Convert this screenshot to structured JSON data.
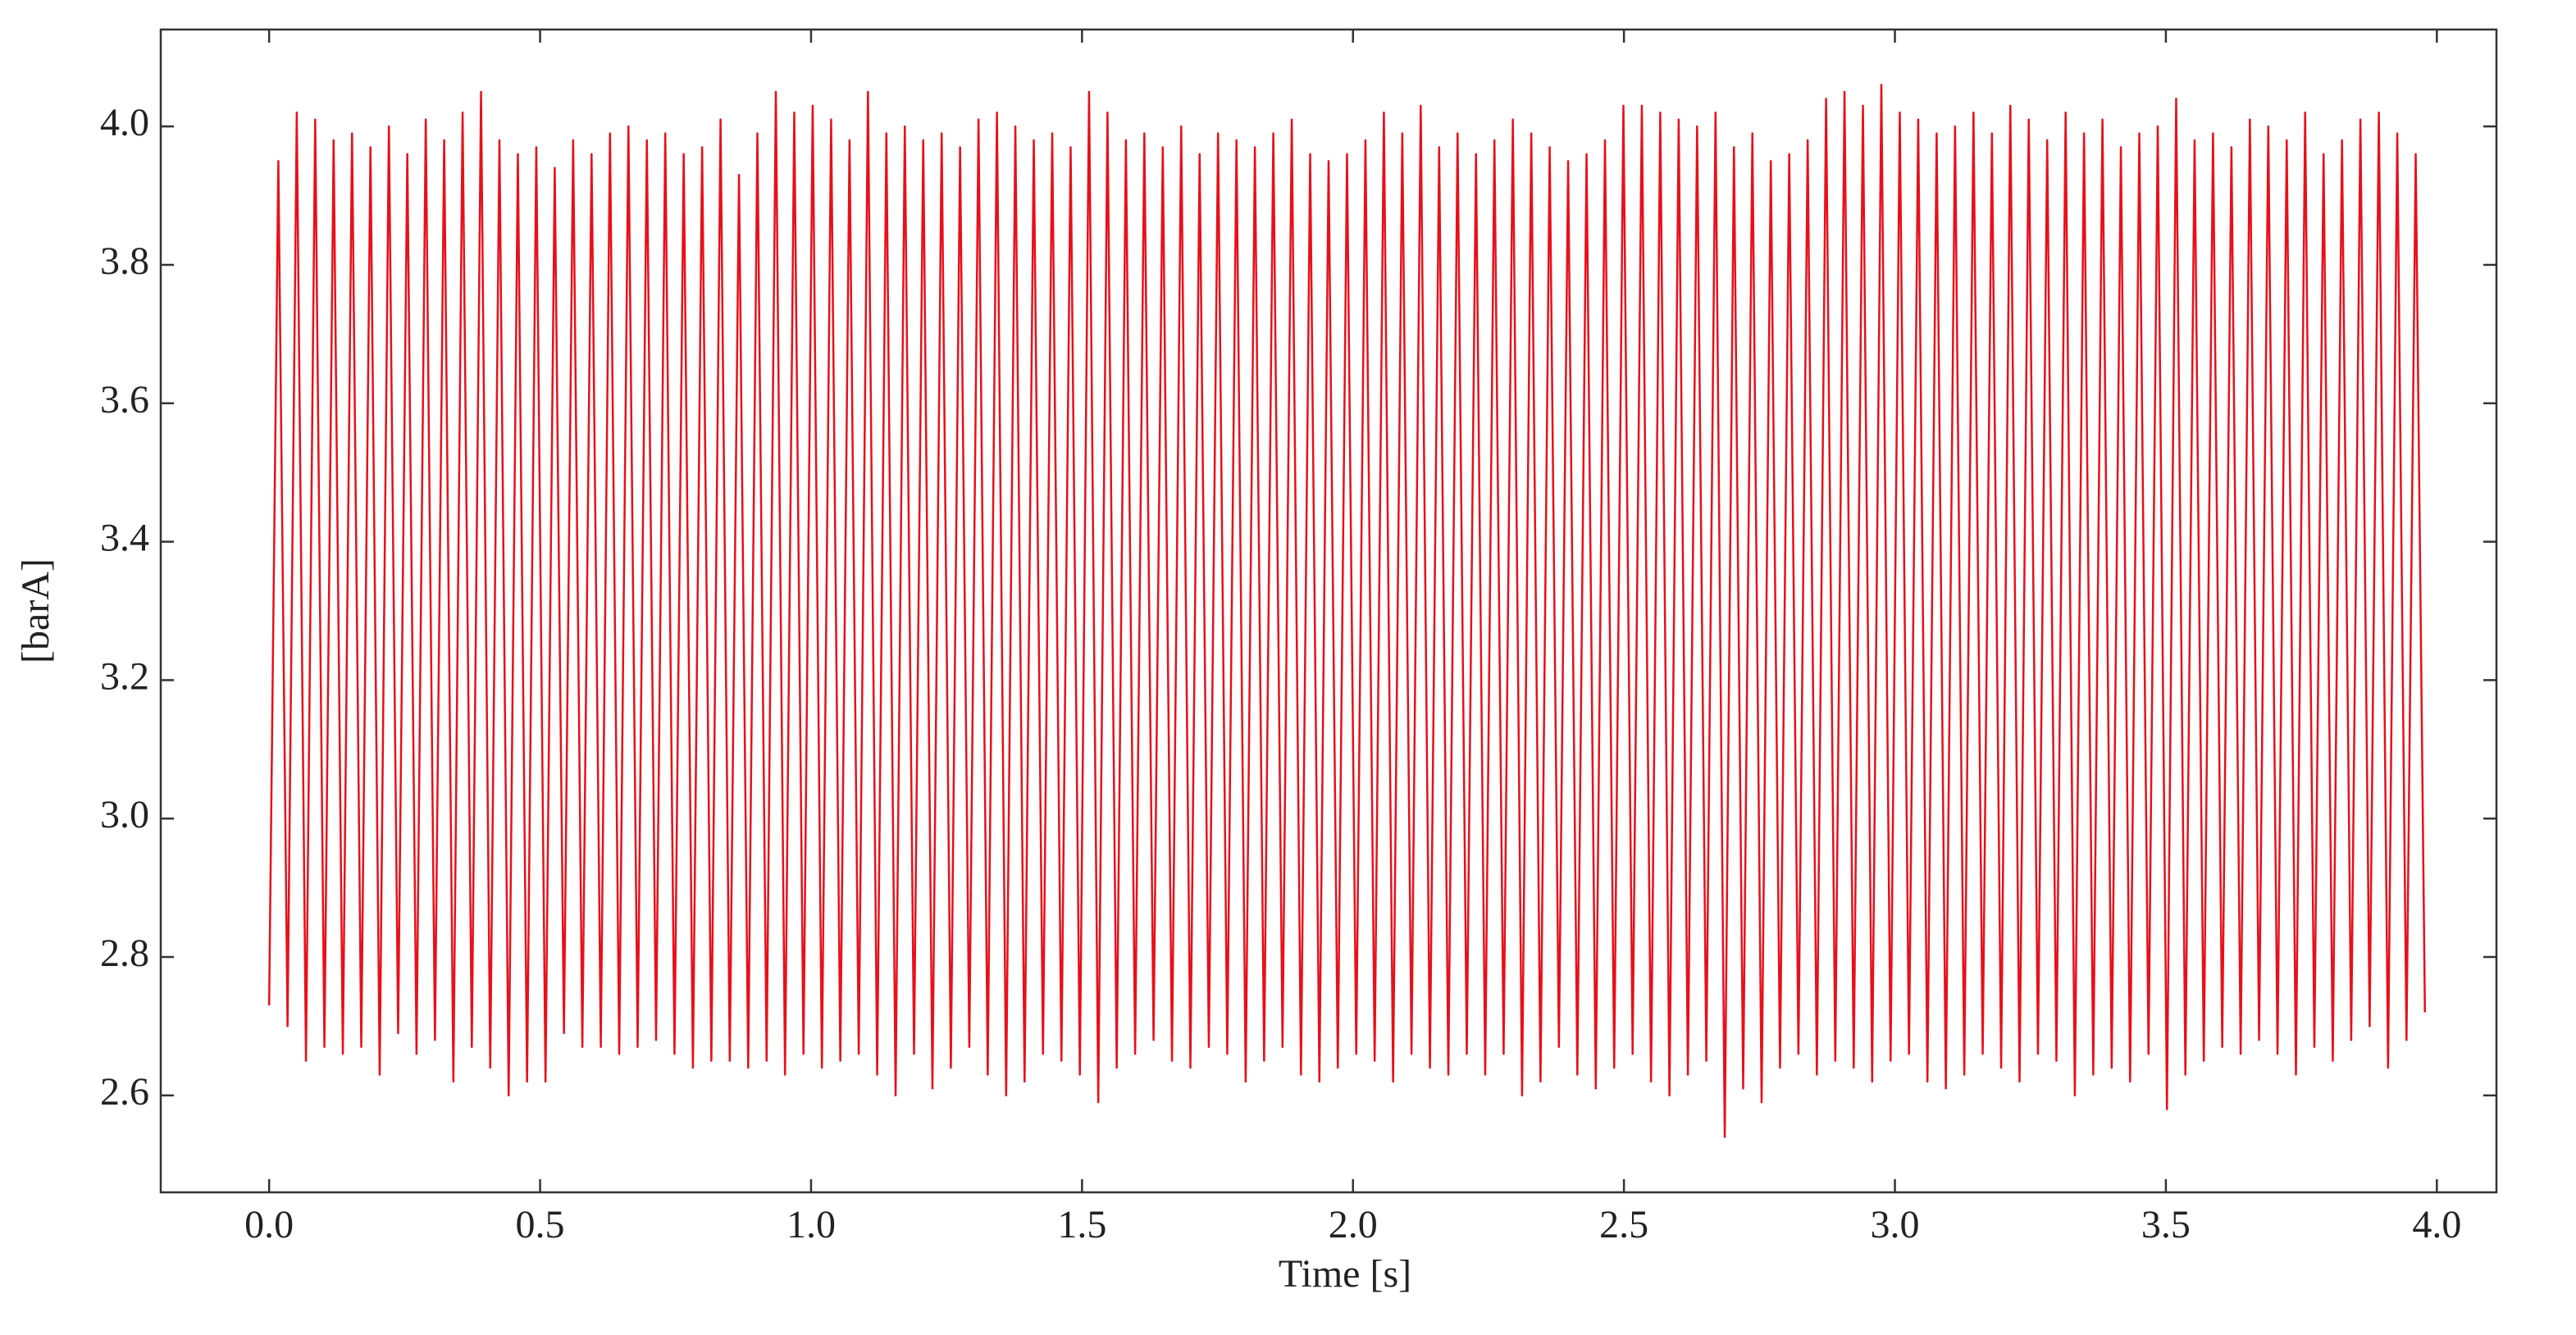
{
  "chart_data": {
    "type": "line",
    "x_label": "Time [s]",
    "y_label": "[barA]",
    "color": "#e8101a",
    "xlim": [
      -0.2,
      4.11
    ],
    "ylim": [
      2.46,
      4.14
    ],
    "xticks": [
      {
        "value": 0,
        "label": "0.0"
      },
      0.5,
      {
        "value": 1,
        "label": "1.0"
      },
      1.5,
      {
        "value": 2,
        "label": "2.0"
      },
      2.5,
      {
        "value": 3,
        "label": "3.0"
      },
      3.5,
      {
        "value": 4,
        "label": "4.0"
      }
    ],
    "yticks": [
      2.6,
      2.8,
      {
        "value": 3,
        "label": "3.0"
      },
      3.2,
      3.4,
      3.6,
      3.8,
      {
        "value": 4,
        "label": "4.0"
      }
    ],
    "x": [
      0,
      0.017,
      0.034,
      0.051,
      0.068,
      0.085,
      0.102,
      0.119,
      0.136,
      0.153,
      0.17,
      0.187,
      0.204,
      0.221,
      0.238,
      0.255,
      0.272,
      0.289,
      0.306,
      0.323,
      0.34,
      0.357,
      0.374,
      0.391,
      0.408,
      0.425,
      0.442,
      0.459,
      0.476,
      0.493,
      0.51,
      0.527,
      0.544,
      0.561,
      0.578,
      0.595,
      0.612,
      0.629,
      0.646,
      0.663,
      0.68,
      0.697,
      0.714,
      0.731,
      0.748,
      0.765,
      0.782,
      0.799,
      0.816,
      0.833,
      0.85,
      0.867,
      0.884,
      0.901,
      0.918,
      0.935,
      0.952,
      0.969,
      0.986,
      1.003,
      1.02,
      1.037,
      1.054,
      1.071,
      1.088,
      1.105,
      1.122,
      1.139,
      1.156,
      1.173,
      1.19,
      1.207,
      1.224,
      1.241,
      1.258,
      1.275,
      1.292,
      1.309,
      1.326,
      1.343,
      1.36,
      1.377,
      1.394,
      1.411,
      1.428,
      1.445,
      1.462,
      1.479,
      1.496,
      1.513,
      1.53,
      1.547,
      1.564,
      1.581,
      1.598,
      1.615,
      1.632,
      1.649,
      1.666,
      1.683,
      1.7,
      1.717,
      1.734,
      1.751,
      1.768,
      1.785,
      1.802,
      1.819,
      1.836,
      1.853,
      1.87,
      1.887,
      1.904,
      1.921,
      1.938,
      1.955,
      1.972,
      1.989,
      2.006,
      2.023,
      2.04,
      2.057,
      2.074,
      2.091,
      2.108,
      2.125,
      2.142,
      2.159,
      2.176,
      2.193,
      2.21,
      2.227,
      2.244,
      2.261,
      2.278,
      2.295,
      2.312,
      2.329,
      2.346,
      2.363,
      2.38,
      2.397,
      2.414,
      2.431,
      2.448,
      2.465,
      2.482,
      2.499,
      2.516,
      2.533,
      2.55,
      2.567,
      2.584,
      2.601,
      2.618,
      2.635,
      2.652,
      2.669,
      2.686,
      2.703,
      2.72,
      2.737,
      2.754,
      2.771,
      2.788,
      2.805,
      2.822,
      2.839,
      2.856,
      2.873,
      2.89,
      2.907,
      2.924,
      2.941,
      2.958,
      2.975,
      2.992,
      3.009,
      3.026,
      3.043,
      3.06,
      3.077,
      3.094,
      3.111,
      3.128,
      3.145,
      3.162,
      3.179,
      3.196,
      3.213,
      3.23,
      3.247,
      3.264,
      3.281,
      3.298,
      3.315,
      3.332,
      3.349,
      3.366,
      3.383,
      3.4,
      3.417,
      3.434,
      3.451,
      3.468,
      3.485,
      3.502,
      3.519,
      3.536,
      3.553,
      3.57,
      3.587,
      3.604,
      3.621,
      3.638,
      3.655,
      3.672,
      3.689,
      3.706,
      3.723,
      3.74,
      3.757,
      3.774,
      3.791,
      3.808,
      3.825,
      3.842,
      3.859,
      3.876,
      3.893,
      3.91,
      3.927,
      3.944,
      3.961,
      3.978
    ],
    "values": [
      2.73,
      3.95,
      2.7,
      4.02,
      2.65,
      4.01,
      2.67,
      3.98,
      2.66,
      3.99,
      2.67,
      3.97,
      2.63,
      4.0,
      2.69,
      3.96,
      2.66,
      4.01,
      2.68,
      3.98,
      2.62,
      4.02,
      2.67,
      4.05,
      2.64,
      3.98,
      2.6,
      3.96,
      2.62,
      3.97,
      2.62,
      3.94,
      2.69,
      3.98,
      2.67,
      3.96,
      2.67,
      3.99,
      2.66,
      4.0,
      2.67,
      3.98,
      2.68,
      3.99,
      2.66,
      3.96,
      2.64,
      3.97,
      2.65,
      4.01,
      2.65,
      3.93,
      2.64,
      3.99,
      2.65,
      4.05,
      2.63,
      4.02,
      2.66,
      4.03,
      2.64,
      4.01,
      2.65,
      3.98,
      2.66,
      4.05,
      2.63,
      3.99,
      2.6,
      4.0,
      2.66,
      3.98,
      2.61,
      3.99,
      2.64,
      3.97,
      2.67,
      4.01,
      2.63,
      4.02,
      2.6,
      4.0,
      2.62,
      3.98,
      2.66,
      3.99,
      2.65,
      3.97,
      2.63,
      4.05,
      2.59,
      4.02,
      2.64,
      3.98,
      2.66,
      3.99,
      2.68,
      3.97,
      2.65,
      4.0,
      2.64,
      3.96,
      2.67,
      3.99,
      2.66,
      3.98,
      2.62,
      3.97,
      2.65,
      3.99,
      2.67,
      4.01,
      2.63,
      3.96,
      2.62,
      3.95,
      2.64,
      3.96,
      2.66,
      3.98,
      2.65,
      4.02,
      2.62,
      3.99,
      2.66,
      4.03,
      2.64,
      3.97,
      2.63,
      3.99,
      2.66,
      3.96,
      2.63,
      3.98,
      2.66,
      4.01,
      2.6,
      3.99,
      2.62,
      3.97,
      2.67,
      3.95,
      2.63,
      3.96,
      2.61,
      3.98,
      2.64,
      4.03,
      2.66,
      4.03,
      2.62,
      4.02,
      2.6,
      4.01,
      2.63,
      4.0,
      2.65,
      4.02,
      2.54,
      3.97,
      2.61,
      3.99,
      2.59,
      3.95,
      2.64,
      3.96,
      2.66,
      3.98,
      2.63,
      4.04,
      2.65,
      4.05,
      2.64,
      4.03,
      2.62,
      4.06,
      2.65,
      4.02,
      2.66,
      4.01,
      2.62,
      3.99,
      2.61,
      4.0,
      2.63,
      4.02,
      2.66,
      3.99,
      2.64,
      4.03,
      2.62,
      4.01,
      2.66,
      3.98,
      2.65,
      4.02,
      2.6,
      3.99,
      2.63,
      4.01,
      2.64,
      3.97,
      2.62,
      3.99,
      2.66,
      4.0,
      2.58,
      4.04,
      2.63,
      3.98,
      2.65,
      3.99,
      2.67,
      3.97,
      2.66,
      4.01,
      2.68,
      4.0,
      2.66,
      3.98,
      2.63,
      4.02,
      2.67,
      3.96,
      2.65,
      3.98,
      2.68,
      4.01,
      2.7,
      4.02,
      2.64,
      3.99,
      2.68,
      3.96,
      2.72
    ]
  }
}
